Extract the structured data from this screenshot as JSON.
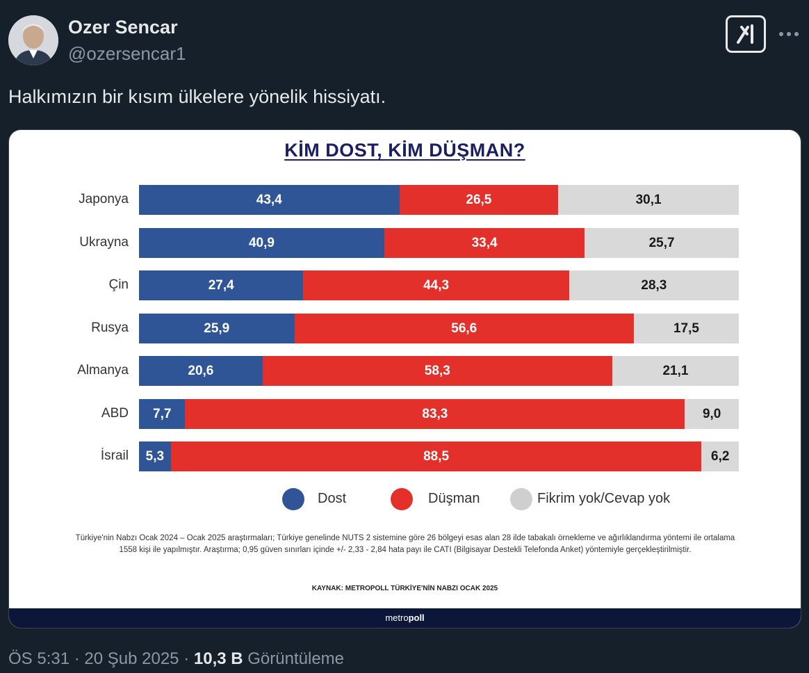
{
  "tweet": {
    "author_name": "Ozer Sencar",
    "author_handle": "@ozersencar1",
    "text": "Halkımızın bir kısım ülkelere yönelik hissiyatı.",
    "time": "ÖS 5:31",
    "date": "20 Şub 2025",
    "separator": "·",
    "views_count": "10,3 B",
    "views_label": "Görüntüleme"
  },
  "colors": {
    "dost": "#2f5597",
    "dusman": "#e3302a",
    "fikrim_yok": "#d9d9d9",
    "background": "#15202b"
  },
  "icons": {
    "grok": "grok-icon",
    "more": "more-icon"
  },
  "chart_data": {
    "type": "bar",
    "stacked": true,
    "orientation": "horizontal",
    "title": "KİM DOST, KİM DÜŞMAN?",
    "categories": [
      "Japonya",
      "Ukrayna",
      "Çin",
      "Rusya",
      "Almanya",
      "ABD",
      "İsrail"
    ],
    "series": [
      {
        "name": "Dost",
        "values": [
          "43,4",
          "40,9",
          "27,4",
          "25,9",
          "20,6",
          "7,7",
          "5,3"
        ]
      },
      {
        "name": "Düşman",
        "values": [
          "26,5",
          "33,4",
          "44,3",
          "56,6",
          "58,3",
          "83,3",
          "88,5"
        ]
      },
      {
        "name": "Fikrim yok/Cevap yok",
        "values": [
          "30,1",
          "25,7",
          "28,3",
          "17,5",
          "21,1",
          "9,0",
          "6,2"
        ]
      }
    ],
    "legend_position": "bottom",
    "note": "Türkiye'nin Nabzı Ocak 2024 – Ocak 2025 araştırmaları; Türkiye genelinde NUTS 2 sistemine göre 26 bölgeyi esas alan 28 ilde tabakalı örnekleme ve ağırlıklandırma yöntemi ile ortalama 1558 kişi ile yapılmıştır. Araştırma; 0,95 güven sınırları içinde +/- 2,33 - 2,84 hata payı ile CATI (Bilgisayar Destekli Telefonda Anket) yöntemiyle gerçekleştirilmiştir.",
    "source": "KAYNAK: METROPOLL TÜRKİYE'NİN NABZI OCAK 2025",
    "brand_prefix": "metro",
    "brand_suffix": "poll"
  }
}
